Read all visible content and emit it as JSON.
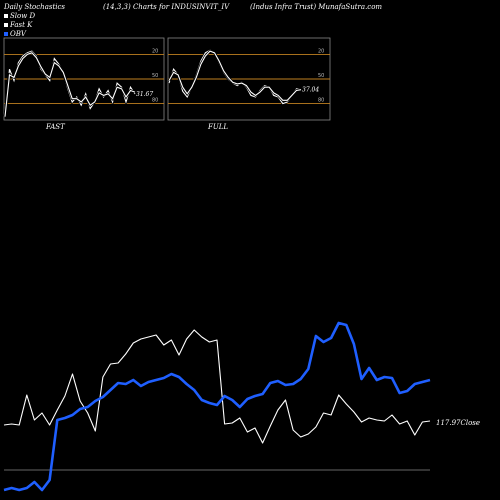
{
  "header": {
    "left": "Daily Stochastics",
    "center": "(14,3,3) Charts for INDUSINVIT_IV",
    "right": "(Indus Infra Trust) MunafaSutra.com"
  },
  "legend": [
    {
      "label": "Slow D",
      "color": "#ffffff"
    },
    {
      "label": "Fast K",
      "color": "#ffffff"
    },
    {
      "label": "OBV",
      "color": "#1f5fff"
    }
  ],
  "colors": {
    "obv": "#1f5fff",
    "price": "#ffffff",
    "band": "#c08020",
    "panel_bg": "#000000"
  },
  "chart_data": [
    {
      "type": "line",
      "title": "FAST",
      "ylim": [
        0,
        100
      ],
      "bands": [
        20,
        50,
        80
      ],
      "tick_labels": [
        "80",
        "50",
        "20"
      ],
      "last_value_label": "31.67",
      "series": [
        {
          "values": [
            5,
            62,
            48,
            70,
            78,
            82,
            84,
            78,
            62,
            55,
            48,
            75,
            68,
            58,
            38,
            22,
            28,
            18,
            32,
            14,
            22,
            38,
            28,
            36,
            22,
            45,
            40,
            22,
            40,
            31.67
          ]
        },
        {
          "values": [
            4,
            55,
            52,
            66,
            75,
            80,
            82,
            76,
            65,
            56,
            52,
            70,
            66,
            58,
            42,
            26,
            26,
            22,
            28,
            18,
            22,
            33,
            30,
            32,
            26,
            40,
            38,
            28,
            36,
            34
          ]
        }
      ]
    },
    {
      "type": "line",
      "title": "FULL",
      "ylim": [
        0,
        100
      ],
      "bands": [
        20,
        50,
        80
      ],
      "tick_labels": [
        "80",
        "50",
        "20"
      ],
      "last_value_label": "37.04",
      "series": [
        {
          "values": [
            45,
            62,
            55,
            35,
            28,
            40,
            55,
            72,
            82,
            85,
            82,
            70,
            58,
            50,
            45,
            42,
            46,
            40,
            30,
            28,
            36,
            42,
            40,
            30,
            28,
            20,
            22,
            30,
            38,
            37.04
          ]
        },
        {
          "values": [
            48,
            58,
            55,
            40,
            32,
            40,
            52,
            68,
            78,
            84,
            82,
            72,
            60,
            52,
            46,
            44,
            45,
            42,
            34,
            30,
            34,
            40,
            40,
            33,
            30,
            24,
            24,
            30,
            36,
            37
          ]
        }
      ]
    },
    {
      "type": "line",
      "title": "",
      "last_value_label": "117.97Close",
      "series": [
        {
          "name": "Close",
          "color": "#ffffff",
          "values": [
            45,
            46,
            45,
            75,
            50,
            57,
            45,
            60,
            74,
            96,
            69,
            57,
            39,
            93,
            106,
            107,
            116,
            127,
            131,
            133,
            135,
            125,
            130,
            115,
            131,
            140,
            133,
            128,
            130,
            46,
            47,
            52,
            38,
            42,
            27,
            44,
            60,
            70,
            40,
            33,
            36,
            43,
            57,
            55,
            75,
            66,
            58,
            48,
            52,
            50,
            49,
            55,
            46,
            49,
            35,
            48,
            49
          ]
        },
        {
          "name": "OBV",
          "color": "#1f5fff",
          "values": [
            -20,
            -18,
            -20,
            -18,
            -12,
            -20,
            -10,
            50,
            52,
            55,
            61,
            63,
            69,
            73,
            80,
            87,
            86,
            90,
            84,
            88,
            90,
            92,
            96,
            93,
            86,
            80,
            70,
            67,
            65,
            74,
            70,
            63,
            71,
            74,
            76,
            87,
            89,
            85,
            86,
            91,
            101,
            134,
            128,
            132,
            147,
            145,
            126,
            91,
            102,
            90,
            93,
            92,
            77,
            79,
            86,
            88,
            90
          ]
        }
      ]
    }
  ]
}
